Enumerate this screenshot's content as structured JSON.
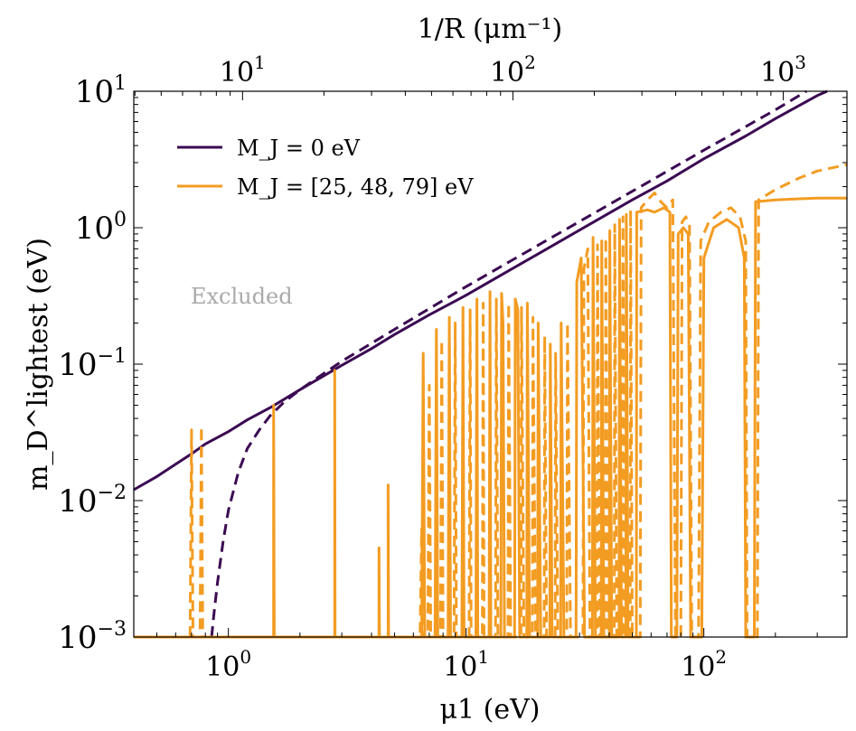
{
  "chart_data": {
    "type": "line",
    "title": "",
    "xlabel": "μ1 (eV)",
    "ylabel": "m_D^lightest (eV)",
    "top_xlabel": "1/R  (μm⁻¹)",
    "xscale": "log",
    "yscale": "log",
    "xlim": [
      0.4,
      400
    ],
    "ylim": [
      0.001,
      10
    ],
    "top_xlim": [
      3.96,
      1720
    ],
    "grid": false,
    "legend_position": "top-left",
    "x_ticks": [
      {
        "value": 1,
        "base": "10",
        "exp": "0"
      },
      {
        "value": 10,
        "base": "10",
        "exp": "1"
      },
      {
        "value": 100,
        "base": "10",
        "exp": "2"
      }
    ],
    "y_ticks": [
      {
        "value": 0.001,
        "base": "10",
        "exp": "−3"
      },
      {
        "value": 0.01,
        "base": "10",
        "exp": "−2"
      },
      {
        "value": 0.1,
        "base": "10",
        "exp": "−1"
      },
      {
        "value": 1,
        "base": "10",
        "exp": "0"
      },
      {
        "value": 10,
        "base": "10",
        "exp": "1"
      }
    ],
    "top_ticks": [
      {
        "value": 10,
        "base": "10",
        "exp": "1"
      },
      {
        "value": 100,
        "base": "10",
        "exp": "2"
      },
      {
        "value": 1000,
        "base": "10",
        "exp": "3"
      }
    ],
    "legend": [
      {
        "label": "M_J = 0 eV",
        "color": "#3b0a52"
      },
      {
        "label": "M_J = [25, 48, 79] eV",
        "color": "#f39c22"
      }
    ],
    "annotation": {
      "text": "Excluded",
      "color": "#aaaaaa",
      "x": 0.62,
      "y": 0.33
    },
    "series": [
      {
        "color": "#3b0a52",
        "dash": false,
        "points": [
          [
            0.4,
            0.012
          ],
          [
            0.5,
            0.015
          ],
          [
            0.6,
            0.0185
          ],
          [
            0.7,
            0.022
          ],
          [
            0.8,
            0.026
          ],
          [
            1.0,
            0.032
          ],
          [
            1.2,
            0.039
          ],
          [
            1.5,
            0.048
          ],
          [
            2.0,
            0.065
          ],
          [
            3.0,
            0.098
          ],
          [
            4.0,
            0.13
          ],
          [
            5.0,
            0.165
          ],
          [
            7.0,
            0.23
          ],
          [
            10,
            0.32
          ],
          [
            15,
            0.48
          ],
          [
            20,
            0.64
          ],
          [
            30,
            0.96
          ],
          [
            50,
            1.6
          ],
          [
            70,
            2.2
          ],
          [
            100,
            3.2
          ],
          [
            150,
            4.7
          ],
          [
            200,
            6.3
          ],
          [
            300,
            9.3
          ],
          [
            330,
            10.0
          ]
        ]
      },
      {
        "color": "#3b0a52",
        "dash": true,
        "points": [
          [
            0.85,
            0.001
          ],
          [
            0.87,
            0.0015
          ],
          [
            0.9,
            0.0025
          ],
          [
            0.95,
            0.005
          ],
          [
            1.0,
            0.0085
          ],
          [
            1.1,
            0.016
          ],
          [
            1.2,
            0.024
          ],
          [
            1.35,
            0.033
          ],
          [
            1.5,
            0.042
          ],
          [
            1.7,
            0.052
          ],
          [
            2.0,
            0.065
          ],
          [
            3.0,
            0.105
          ],
          [
            5.0,
            0.18
          ],
          [
            10,
            0.37
          ],
          [
            20,
            0.74
          ],
          [
            50,
            1.85
          ],
          [
            100,
            3.7
          ],
          [
            200,
            7.3
          ],
          [
            270,
            10.0
          ]
        ]
      },
      {
        "color": "#f39c22",
        "dash": false,
        "points": [
          [
            0.4,
            0.001
          ],
          [
            1.55,
            0.001
          ],
          [
            1.55,
            0.05
          ],
          [
            1.56,
            0.001
          ],
          [
            2.8,
            0.001
          ],
          [
            2.8,
            0.09
          ],
          [
            2.81,
            0.001
          ],
          [
            4.3,
            0.001
          ],
          [
            4.3,
            0.0045
          ],
          [
            4.32,
            0.001
          ],
          [
            4.7,
            0.001
          ],
          [
            4.7,
            0.013
          ],
          [
            4.72,
            0.001
          ],
          [
            6.5,
            0.001
          ],
          [
            6.6,
            0.12
          ],
          [
            6.7,
            0.001
          ],
          [
            7.4,
            0.001
          ],
          [
            7.5,
            0.18
          ],
          [
            7.6,
            0.001
          ],
          [
            8.4,
            0.001
          ],
          [
            8.5,
            0.22
          ],
          [
            8.6,
            0.001
          ],
          [
            9.6,
            0.001
          ],
          [
            9.7,
            0.26
          ],
          [
            9.8,
            0.001
          ],
          [
            11.0,
            0.001
          ],
          [
            11.1,
            0.3
          ],
          [
            11.2,
            0.001
          ],
          [
            12.5,
            0.001
          ],
          [
            12.6,
            0.34
          ],
          [
            12.7,
            0.001
          ],
          [
            14.0,
            0.001
          ],
          [
            14.1,
            0.33
          ],
          [
            14.3,
            0.2
          ],
          [
            14.5,
            0.001
          ],
          [
            16.0,
            0.001
          ],
          [
            16.1,
            0.3
          ],
          [
            16.5,
            0.25
          ],
          [
            16.8,
            0.001
          ],
          [
            18.0,
            0.001
          ],
          [
            18.1,
            0.28
          ],
          [
            18.5,
            0.001
          ],
          [
            20.0,
            0.001
          ],
          [
            20.1,
            0.2
          ],
          [
            20.6,
            0.001
          ],
          [
            22.5,
            0.001
          ],
          [
            22.6,
            0.14
          ],
          [
            23.0,
            0.001
          ],
          [
            25.0,
            0.001
          ],
          [
            25.1,
            0.2
          ],
          [
            25.8,
            0.001
          ],
          [
            29.0,
            0.001
          ],
          [
            29.2,
            0.4
          ],
          [
            30.5,
            0.6
          ],
          [
            31.5,
            0.001
          ],
          [
            34.0,
            0.001
          ],
          [
            34.2,
            0.85
          ],
          [
            35.0,
            0.001
          ],
          [
            37.0,
            0.001
          ],
          [
            37.2,
            0.8
          ],
          [
            38.0,
            0.001
          ],
          [
            40.0,
            0.001
          ],
          [
            40.2,
            0.95
          ],
          [
            41.0,
            0.001
          ],
          [
            44.0,
            0.001
          ],
          [
            44.2,
            1.15
          ],
          [
            45.0,
            0.001
          ],
          [
            47.0,
            0.001
          ],
          [
            47.2,
            1.25
          ],
          [
            48.0,
            0.001
          ],
          [
            52.0,
            0.001
          ],
          [
            52.2,
            1.3
          ],
          [
            58.0,
            1.35
          ],
          [
            62.0,
            1.3
          ],
          [
            68.0,
            1.4
          ],
          [
            72.0,
            1.3
          ],
          [
            73.0,
            0.001
          ],
          [
            77.0,
            0.001
          ],
          [
            78.0,
            0.9
          ],
          [
            82.0,
            1.0
          ],
          [
            86.0,
            0.9
          ],
          [
            88.0,
            0.001
          ],
          [
            98.0,
            0.001
          ],
          [
            100,
            0.6
          ],
          [
            110,
            1.0
          ],
          [
            125,
            1.15
          ],
          [
            140,
            1.0
          ],
          [
            148,
            0.6
          ],
          [
            150,
            0.001
          ],
          [
            163,
            0.001
          ],
          [
            165,
            1.55
          ],
          [
            200,
            1.6
          ],
          [
            300,
            1.65
          ],
          [
            400,
            1.65
          ]
        ]
      },
      {
        "color": "#f39c22",
        "dash": true,
        "points": [
          [
            0.69,
            0.001
          ],
          [
            0.7,
            0.033
          ],
          [
            0.71,
            0.001
          ],
          [
            0.76,
            0.001
          ],
          [
            0.77,
            0.035
          ],
          [
            0.78,
            0.001
          ],
          [
            6.4,
            0.001
          ],
          [
            6.5,
            0.0062
          ],
          [
            6.6,
            0.001
          ],
          [
            6.9,
            0.001
          ],
          [
            7.0,
            0.07
          ],
          [
            7.1,
            0.001
          ],
          [
            7.8,
            0.001
          ],
          [
            7.9,
            0.15
          ],
          [
            8.0,
            0.001
          ],
          [
            8.9,
            0.001
          ],
          [
            9.0,
            0.2
          ],
          [
            9.1,
            0.001
          ],
          [
            10.3,
            0.001
          ],
          [
            10.4,
            0.25
          ],
          [
            10.5,
            0.001
          ],
          [
            11.7,
            0.001
          ],
          [
            11.8,
            0.28
          ],
          [
            11.9,
            0.001
          ],
          [
            13.3,
            0.001
          ],
          [
            13.4,
            0.3
          ],
          [
            13.6,
            0.001
          ],
          [
            15.0,
            0.001
          ],
          [
            15.1,
            0.28
          ],
          [
            15.4,
            0.001
          ],
          [
            17.0,
            0.001
          ],
          [
            17.1,
            0.26
          ],
          [
            17.5,
            0.001
          ],
          [
            19.0,
            0.001
          ],
          [
            19.1,
            0.22
          ],
          [
            19.6,
            0.001
          ],
          [
            21.3,
            0.001
          ],
          [
            21.4,
            0.16
          ],
          [
            21.8,
            0.001
          ],
          [
            23.7,
            0.001
          ],
          [
            23.8,
            0.12
          ],
          [
            24.3,
            0.001
          ],
          [
            26.5,
            0.001
          ],
          [
            26.7,
            0.2
          ],
          [
            27.5,
            0.001
          ],
          [
            31.0,
            0.001
          ],
          [
            31.3,
            0.5
          ],
          [
            32.5,
            0.7
          ],
          [
            33.2,
            0.001
          ],
          [
            35.5,
            0.001
          ],
          [
            35.7,
            0.75
          ],
          [
            36.5,
            0.001
          ],
          [
            38.5,
            0.001
          ],
          [
            38.7,
            0.85
          ],
          [
            39.5,
            0.001
          ],
          [
            42.0,
            0.001
          ],
          [
            42.2,
            1.05
          ],
          [
            43.0,
            0.001
          ],
          [
            45.5,
            0.001
          ],
          [
            45.7,
            1.2
          ],
          [
            46.5,
            0.001
          ],
          [
            49.0,
            0.001
          ],
          [
            49.2,
            1.35
          ],
          [
            50.0,
            0.001
          ],
          [
            54.0,
            0.001
          ],
          [
            54.5,
            1.4
          ],
          [
            58.0,
            1.6
          ],
          [
            62.0,
            1.8
          ],
          [
            66.0,
            1.55
          ],
          [
            70.0,
            1.4
          ],
          [
            74.0,
            1.6
          ],
          [
            76.0,
            0.001
          ],
          [
            80.0,
            0.001
          ],
          [
            81.0,
            1.1
          ],
          [
            84.0,
            1.2
          ],
          [
            87.0,
            1.05
          ],
          [
            89.0,
            0.001
          ],
          [
            95.0,
            0.001
          ],
          [
            97.0,
            0.8
          ],
          [
            105,
            1.1
          ],
          [
            118,
            1.3
          ],
          [
            130,
            1.4
          ],
          [
            142,
            1.2
          ],
          [
            150,
            0.8
          ],
          [
            152,
            0.001
          ],
          [
            168,
            0.001
          ],
          [
            170,
            1.6
          ],
          [
            200,
            1.9
          ],
          [
            250,
            2.3
          ],
          [
            300,
            2.6
          ],
          [
            400,
            2.9
          ]
        ]
      }
    ]
  }
}
